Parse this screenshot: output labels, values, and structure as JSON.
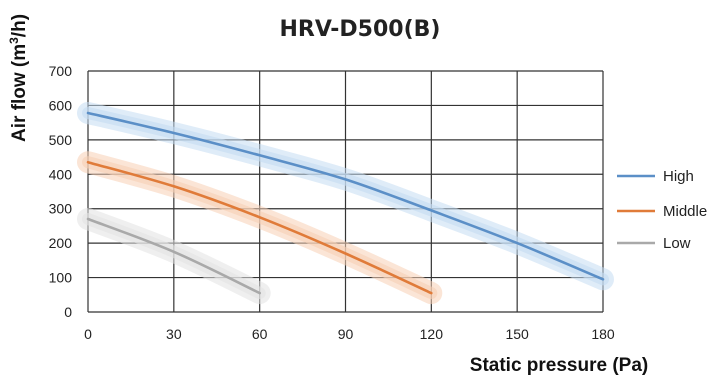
{
  "chart_data": {
    "type": "line",
    "title": "HRV-D500(B)",
    "xlabel": "Static pressure (Pa)",
    "ylabel_main": "Air flow (m",
    "ylabel_sup": "3",
    "ylabel_tail": "/h)",
    "xlim": [
      0,
      180
    ],
    "ylim": [
      0,
      700
    ],
    "xticks": [
      0,
      30,
      60,
      90,
      120,
      150,
      180
    ],
    "yticks": [
      0,
      100,
      200,
      300,
      400,
      500,
      600,
      700
    ],
    "grid": true,
    "legend_position": "right",
    "series": [
      {
        "name": "High",
        "color": "#5b8fc7",
        "glow": "#c5dcf2",
        "x": [
          0,
          30,
          60,
          90,
          120,
          150,
          180
        ],
        "y": [
          578,
          520,
          455,
          385,
          295,
          200,
          95
        ]
      },
      {
        "name": "Middle",
        "color": "#e07b39",
        "glow": "#f7cfb4",
        "x": [
          0,
          30,
          60,
          90,
          120
        ],
        "y": [
          435,
          365,
          275,
          170,
          55
        ]
      },
      {
        "name": "Low",
        "color": "#a9a9a9",
        "glow": "#e2e2e2",
        "x": [
          0,
          30,
          60
        ],
        "y": [
          270,
          175,
          55
        ]
      }
    ]
  }
}
